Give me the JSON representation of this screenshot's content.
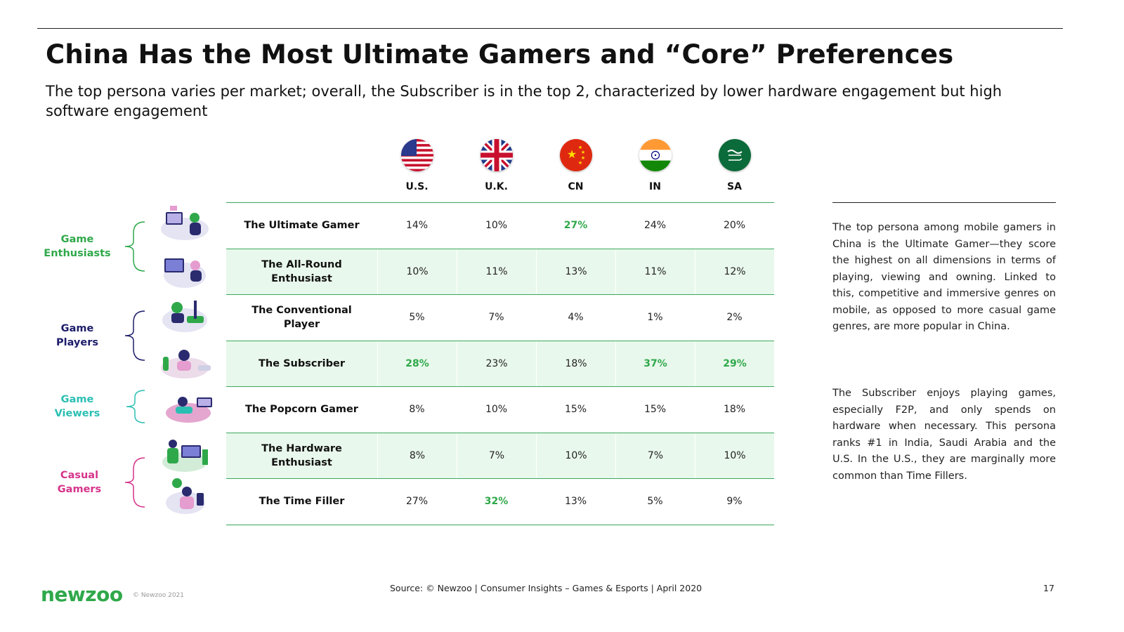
{
  "title": "China Has the Most Ultimate Gamers and “Core” Preferences",
  "subtitle": "The top persona varies per market; overall, the Subscriber is in the top 2, characterized by lower hardware engagement but high software engagement",
  "countries": [
    {
      "label": "U.S.",
      "flag": "us-flag-icon"
    },
    {
      "label": "U.K.",
      "flag": "uk-flag-icon"
    },
    {
      "label": "CN",
      "flag": "china-flag-icon"
    },
    {
      "label": "IN",
      "flag": "india-flag-icon"
    },
    {
      "label": "SA",
      "flag": "saudi-arabia-flag-icon"
    }
  ],
  "groups": [
    {
      "label": "Game Enthusiasts",
      "color": "#2fa84a"
    },
    {
      "label": "Game Players",
      "color": "#1d1d6b"
    },
    {
      "label": "Game Viewers",
      "color": "#2bbfb3"
    },
    {
      "label": "Casual Gamers",
      "color": "#d6338a"
    }
  ],
  "personas": [
    {
      "name": "The Ultimate Gamer",
      "values": [
        "14%",
        "10%",
        "27%",
        "24%",
        "20%"
      ],
      "highlight": [
        false,
        false,
        true,
        false,
        false
      ]
    },
    {
      "name": "The All-Round Enthusiast",
      "values": [
        "10%",
        "11%",
        "13%",
        "11%",
        "12%"
      ],
      "highlight": [
        false,
        false,
        false,
        false,
        false
      ]
    },
    {
      "name": "The Conventional Player",
      "values": [
        "5%",
        "7%",
        "4%",
        "1%",
        "2%"
      ],
      "highlight": [
        false,
        false,
        false,
        false,
        false
      ]
    },
    {
      "name": "The Subscriber",
      "values": [
        "28%",
        "23%",
        "18%",
        "37%",
        "29%"
      ],
      "highlight": [
        true,
        false,
        false,
        true,
        true
      ]
    },
    {
      "name": "The Popcorn Gamer",
      "values": [
        "8%",
        "10%",
        "15%",
        "15%",
        "18%"
      ],
      "highlight": [
        false,
        false,
        false,
        false,
        false
      ]
    },
    {
      "name": "The Hardware Enthusiast",
      "values": [
        "8%",
        "7%",
        "10%",
        "7%",
        "10%"
      ],
      "highlight": [
        false,
        false,
        false,
        false,
        false
      ]
    },
    {
      "name": "The Time Filler",
      "values": [
        "27%",
        "32%",
        "13%",
        "5%",
        "9%"
      ],
      "highlight": [
        false,
        true,
        false,
        false,
        false
      ]
    }
  ],
  "side_text": [
    "The top persona among mobile gamers in China is the Ultimate Gamer—they score the highest on all dimensions in terms of playing, viewing and owning. Linked to this, competitive and immersive genres on mobile, as opposed to more casual game genres, are more popular in China.",
    "The Subscriber enjoys playing games, especially F2P, and only spends on hardware when necessary. This persona ranks #1 in India, Saudi Arabia and the U.S. In the U.S., they are marginally more common than Time Fillers."
  ],
  "footer": {
    "logo": "newzoo",
    "copyright": "© Newzoo 2021",
    "source": "Source: © Newzoo | Consumer Insights – Games & Esports | April 2020",
    "page": "17"
  },
  "colors": {
    "accent": "#2fa84a",
    "row_fill": "#e9f8ec",
    "highlight_text": "#2fa84a"
  }
}
